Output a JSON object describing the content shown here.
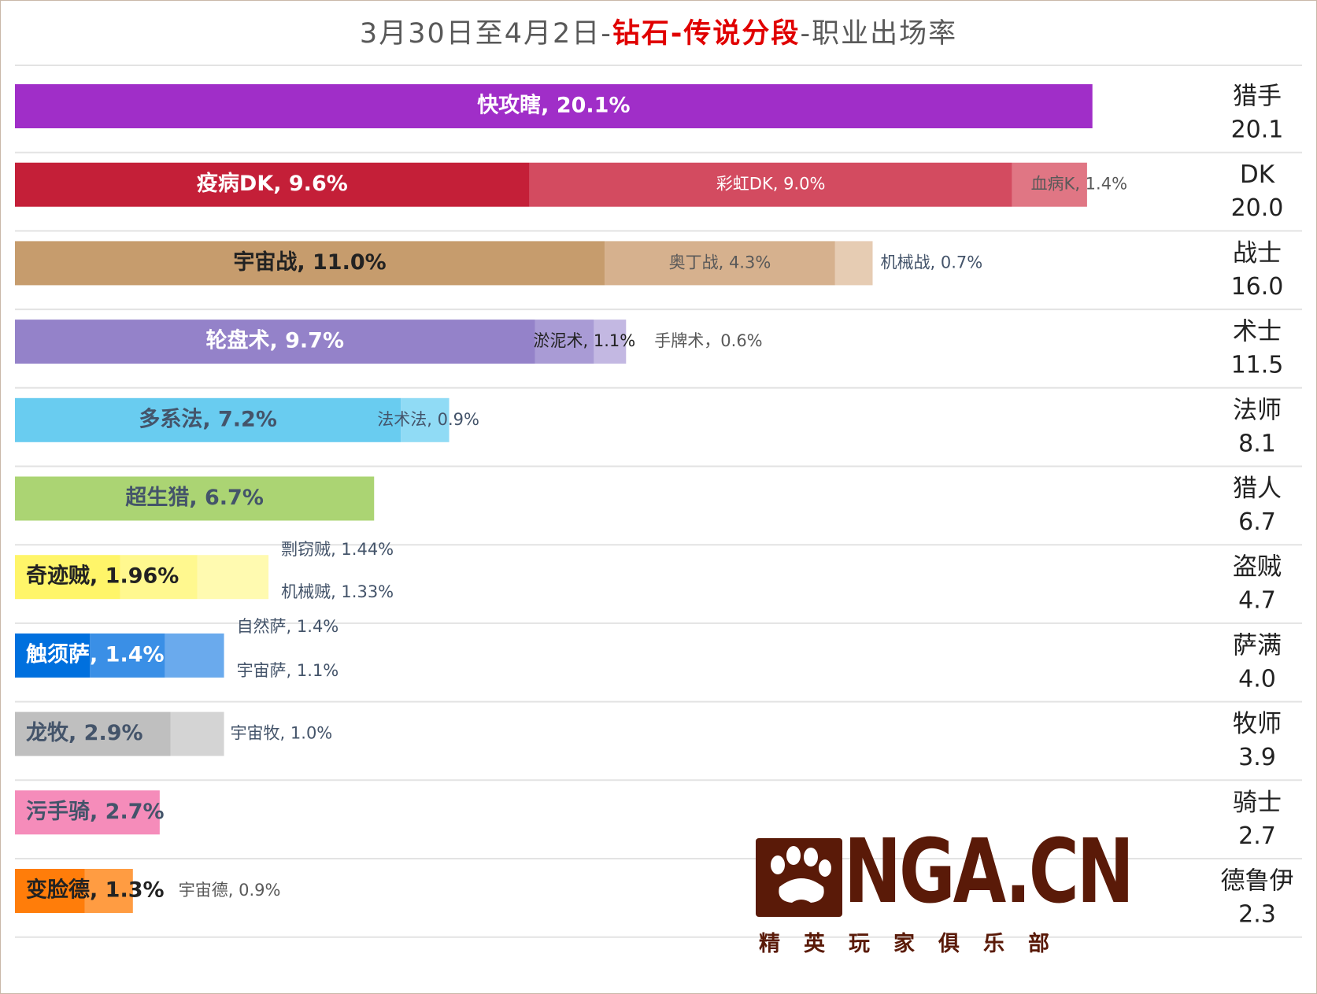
{
  "title": {
    "prefix": "3月30日至4月2日-",
    "highlight": "钻石-传说分段",
    "suffix": "-职业出场率"
  },
  "logo": {
    "text": "NGA.CN",
    "subtitle": "精英玩家俱乐部"
  },
  "chart_data": {
    "type": "bar",
    "orientation": "horizontal",
    "stacked": true,
    "unit": "%",
    "xlim": [
      0,
      21
    ],
    "classes": [
      {
        "name": "猎手",
        "total": "20.1",
        "segments": [
          {
            "label": "快攻瞎, 20.1%",
            "value": 20.1,
            "color": "#a02ec8"
          }
        ]
      },
      {
        "name": "DK",
        "total": "20.0",
        "segments": [
          {
            "label": "疫病DK, 9.6%",
            "value": 9.6,
            "color": "#c41f38"
          },
          {
            "label": "彩虹DK, 9.0%",
            "value": 9.0,
            "color": "#d34b60"
          },
          {
            "label": "血病K, 1.4%",
            "value": 1.4,
            "color": "#e07684"
          }
        ]
      },
      {
        "name": "战士",
        "total": "16.0",
        "segments": [
          {
            "label": "宇宙战, 11.0%",
            "value": 11.0,
            "color": "#c69c6d"
          },
          {
            "label": "奥丁战, 4.3%",
            "value": 4.3,
            "color": "#d6b18e"
          },
          {
            "label": "机械战, 0.7%",
            "value": 0.7,
            "color": "#e6ccb3"
          }
        ]
      },
      {
        "name": "术士",
        "total": "11.5",
        "segments": [
          {
            "label": "轮盘术, 9.7%",
            "value": 9.7,
            "color": "#9482c9"
          },
          {
            "label": "淤泥术, 1.1%",
            "value": 1.1,
            "color": "#a99bd5"
          },
          {
            "label": "手牌术，0.6%",
            "value": 0.6,
            "color": "#c3b8e2"
          }
        ]
      },
      {
        "name": "法师",
        "total": "8.1",
        "segments": [
          {
            "label": "多系法, 7.2%",
            "value": 7.2,
            "color": "#69ccf0"
          },
          {
            "label": "法术法, 0.9%",
            "value": 0.9,
            "color": "#90dbf5"
          }
        ]
      },
      {
        "name": "猎人",
        "total": "6.7",
        "segments": [
          {
            "label": "超生猎, 6.7%",
            "value": 6.7,
            "color": "#abd473"
          }
        ]
      },
      {
        "name": "盗贼",
        "total": "4.7",
        "segments": [
          {
            "label": "奇迹贼, 1.96%",
            "value": 1.96,
            "color": "#fff569"
          },
          {
            "label": "剽窃贼, 1.44%",
            "value": 1.44,
            "color": "#fff88f"
          },
          {
            "label": "机械贼, 1.33%",
            "value": 1.33,
            "color": "#fffab0"
          }
        ]
      },
      {
        "name": "萨满",
        "total": "4.0",
        "segments": [
          {
            "label": "触须萨, 1.4%",
            "value": 1.4,
            "color": "#0070de"
          },
          {
            "label": "自然萨, 1.4%",
            "value": 1.4,
            "color": "#3a8fe6"
          },
          {
            "label": "宇宙萨, 1.1%",
            "value": 1.1,
            "color": "#6aaaed"
          }
        ]
      },
      {
        "name": "牧师",
        "total": "3.9",
        "segments": [
          {
            "label": "龙牧, 2.9%",
            "value": 2.9,
            "color": "#bfbfbf"
          },
          {
            "label": "宇宙牧, 1.0%",
            "value": 1.0,
            "color": "#d4d4d4"
          }
        ]
      },
      {
        "name": "骑士",
        "total": "2.7",
        "segments": [
          {
            "label": "污手骑, 2.7%",
            "value": 2.7,
            "color": "#f58cba"
          }
        ]
      },
      {
        "name": "德鲁伊",
        "total": "2.3",
        "segments": [
          {
            "label": "变脸德, 1.3%",
            "value": 1.3,
            "color": "#ff7d0a"
          },
          {
            "label": "宇宙德, 0.9%",
            "value": 0.9,
            "color": "#ff9c42"
          }
        ]
      }
    ]
  }
}
